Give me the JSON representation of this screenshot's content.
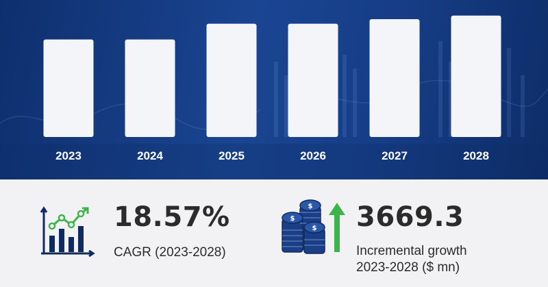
{
  "chart_data": {
    "type": "bar",
    "categories": [
      "2023",
      "2024",
      "2025",
      "2026",
      "2027",
      "2028"
    ],
    "values": [
      71.2,
      71.2,
      82.7,
      82.7,
      86.0,
      88.6
    ],
    "ylim": [
      0,
      100
    ],
    "grid": false,
    "legend": "none"
  },
  "colors": {
    "background_top": "#1a4592",
    "bar": "#f4f5f8",
    "text_dark": "#2b2b2b",
    "icon_navy": "#0f2a5e",
    "icon_green": "#3cb44b"
  },
  "icons": {
    "cagr": "growth-chart-icon",
    "incremental": "coins-arrow-icon"
  },
  "stats": {
    "cagr": {
      "value": "18.57%",
      "label": "CAGR  (2023-2028)"
    },
    "incremental": {
      "value": "3669.3",
      "label_line1": "Incremental growth",
      "label_line2": "2023-2028 ($ mn)"
    }
  }
}
